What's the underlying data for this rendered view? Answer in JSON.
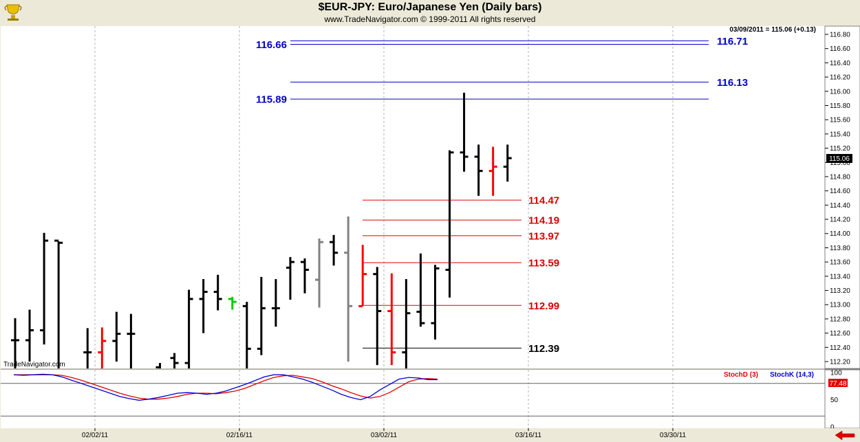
{
  "header": {
    "title": "$EUR-JPY:  Euro/Japanese Yen  (Daily bars)",
    "copyright": "www.TradeNavigator.com © 1999-2011 All rights reserved"
  },
  "watermark": "TradeNavigator.com",
  "status_readout": "03/09/2011 = 115.06 (+0.13)",
  "last_price": "115.06",
  "indicator": {
    "stochd_label": "StochD (3)",
    "stochk_label": "StochK (14,3)",
    "readout": "77.48",
    "stochd_color": "#e00000",
    "stochk_color": "#0000d0",
    "axis_ticks": [
      "100",
      "50",
      "0"
    ]
  },
  "colors": {
    "bar_default": "#000000",
    "bar_red": "#ff0000",
    "bar_gray": "#808080",
    "bar_green": "#00cc00",
    "blue_level": "#0000cc",
    "red_level": "#dd0000"
  },
  "chart_data": {
    "type": "ohlc",
    "y_ticks": [
      "116.80",
      "116.60",
      "116.40",
      "116.20",
      "116.00",
      "115.80",
      "115.60",
      "115.40",
      "115.20",
      "115.00",
      "114.80",
      "114.60",
      "114.40",
      "114.20",
      "114.00",
      "113.80",
      "113.60",
      "113.40",
      "113.20",
      "113.00",
      "112.80",
      "112.60",
      "112.40",
      "112.20"
    ],
    "ylim": [
      112.08,
      116.93
    ],
    "x_labels": [
      "02/02/11",
      "02/16/11",
      "03/02/11",
      "03/16/11",
      "03/30/11"
    ],
    "bars": [
      {
        "date": "01/20/11",
        "open": 112.5,
        "high": 112.81,
        "low": 112.08,
        "close": 112.5,
        "color": "default"
      },
      {
        "date": "01/21/11",
        "open": 112.5,
        "high": 112.93,
        "low": 112.2,
        "close": 112.64,
        "color": "default"
      },
      {
        "date": "01/24/11",
        "open": 112.64,
        "high": 114.01,
        "low": 112.44,
        "close": 113.9,
        "color": "default"
      },
      {
        "date": "01/25/11",
        "open": 113.9,
        "high": 113.89,
        "low": 112.08,
        "close": 113.87,
        "color": "default"
      },
      {
        "date": "01/26/11",
        "open": null,
        "high": null,
        "low": null,
        "close": null,
        "color": "default"
      },
      {
        "date": "01/27/11",
        "open": 112.33,
        "high": 112.67,
        "low": 112.08,
        "close": 112.33,
        "color": "default"
      },
      {
        "date": "01/28/11",
        "open": 112.33,
        "high": 112.68,
        "low": 112.08,
        "close": 112.49,
        "color": "red"
      },
      {
        "date": "01/31/11",
        "open": 112.49,
        "high": 112.9,
        "low": 112.2,
        "close": 112.59,
        "color": "default"
      },
      {
        "date": "02/01/11",
        "open": 112.59,
        "high": 112.87,
        "low": 112.08,
        "close": 112.59,
        "color": "default"
      },
      {
        "date": "02/02/11",
        "open": null,
        "high": null,
        "low": null,
        "close": null,
        "color": "default"
      },
      {
        "date": "02/03/11",
        "open": 112.12,
        "high": 112.18,
        "low": 112.08,
        "close": 112.1,
        "color": "default"
      },
      {
        "date": "02/04/11",
        "open": 112.25,
        "high": 112.32,
        "low": 112.08,
        "close": 112.18,
        "color": "default"
      },
      {
        "date": "02/07/11",
        "open": 112.18,
        "high": 113.21,
        "low": 112.08,
        "close": 113.08,
        "color": "default"
      },
      {
        "date": "02/08/11",
        "open": 113.08,
        "high": 113.36,
        "low": 112.6,
        "close": 113.18,
        "color": "default"
      },
      {
        "date": "02/09/11",
        "open": 113.18,
        "high": 113.42,
        "low": 112.92,
        "close": 113.08,
        "color": "default"
      },
      {
        "date": "02/10/11",
        "open": 113.08,
        "high": 113.11,
        "low": 112.93,
        "close": 113.04,
        "color": "green"
      },
      {
        "date": "02/11/11",
        "open": 112.98,
        "high": 113.04,
        "low": 112.08,
        "close": 112.38,
        "color": "default"
      },
      {
        "date": "02/14/11",
        "open": 112.38,
        "high": 113.39,
        "low": 112.29,
        "close": 112.95,
        "color": "default"
      },
      {
        "date": "02/15/11",
        "open": 112.95,
        "high": 113.36,
        "low": 112.69,
        "close": 112.95,
        "color": "default"
      },
      {
        "date": "02/16/11",
        "open": 113.52,
        "high": 113.67,
        "low": 113.07,
        "close": 113.6,
        "color": "default"
      },
      {
        "date": "02/17/11",
        "open": 113.6,
        "high": 113.65,
        "low": 113.16,
        "close": 113.49,
        "color": "default"
      },
      {
        "date": "02/18/11",
        "open": 113.35,
        "high": 113.93,
        "low": 112.96,
        "close": 113.88,
        "color": "gray"
      },
      {
        "date": "02/21/11",
        "open": 113.88,
        "high": 113.98,
        "low": 113.55,
        "close": 113.73,
        "color": "default"
      },
      {
        "date": "02/22/11",
        "open": 113.73,
        "high": 114.24,
        "low": 112.2,
        "close": 112.98,
        "color": "gray"
      },
      {
        "date": "02/23/11",
        "open": 112.98,
        "high": 113.84,
        "low": 112.98,
        "close": 113.43,
        "color": "red"
      },
      {
        "date": "02/24/11",
        "open": 113.43,
        "high": 113.53,
        "low": 112.15,
        "close": 112.91,
        "color": "default"
      },
      {
        "date": "02/25/11",
        "open": 112.91,
        "high": 113.44,
        "low": 112.15,
        "close": 112.33,
        "color": "red"
      },
      {
        "date": "02/28/11",
        "open": 112.33,
        "high": 113.36,
        "low": 112.08,
        "close": 112.88,
        "color": "default"
      },
      {
        "date": "03/01/11",
        "open": 112.9,
        "high": 113.72,
        "low": 112.69,
        "close": 112.74,
        "color": "default"
      },
      {
        "date": "03/02/11",
        "open": 112.74,
        "high": 113.56,
        "low": 112.51,
        "close": 113.51,
        "color": "default"
      },
      {
        "date": "03/03/11",
        "open": 113.49,
        "high": 115.17,
        "low": 113.1,
        "close": 115.14,
        "color": "default"
      },
      {
        "date": "03/04/11",
        "open": 115.14,
        "high": 115.98,
        "low": 114.87,
        "close": 115.08,
        "color": "default"
      },
      {
        "date": "03/07/11",
        "open": 115.08,
        "high": 115.25,
        "low": 114.53,
        "close": 114.88,
        "color": "default"
      },
      {
        "date": "03/08/11",
        "open": 114.88,
        "high": 115.22,
        "low": 114.53,
        "close": 114.94,
        "color": "red"
      },
      {
        "date": "03/09/11",
        "open": 114.94,
        "high": 115.25,
        "low": 114.73,
        "close": 115.06,
        "color": "default"
      }
    ],
    "blue_levels": [
      {
        "value": 116.66,
        "label": "116.66",
        "side": "left"
      },
      {
        "value": 116.71,
        "label": "116.71",
        "side": "right"
      },
      {
        "value": 116.13,
        "label": "116.13",
        "side": "right"
      },
      {
        "value": 115.89,
        "label": "115.89",
        "side": "left"
      }
    ],
    "red_levels": [
      {
        "value": 114.47,
        "label": "114.47"
      },
      {
        "value": 114.19,
        "label": "114.19"
      },
      {
        "value": 113.97,
        "label": "113.97"
      },
      {
        "value": 113.59,
        "label": "113.59"
      },
      {
        "value": 112.99,
        "label": "112.99"
      }
    ],
    "black_level": {
      "value": 112.39,
      "label": "112.39"
    },
    "stochastics": {
      "ylim": [
        0,
        100
      ],
      "reference_line": 80,
      "stochk": [
        96,
        95,
        96,
        97,
        96,
        92,
        86,
        80,
        74,
        68,
        62,
        56,
        52,
        49,
        51,
        54,
        58,
        62,
        63,
        62,
        60,
        62,
        66,
        72,
        78,
        85,
        92,
        96,
        96,
        92,
        88,
        82,
        75,
        68,
        60,
        54,
        50,
        56,
        68,
        78,
        88,
        91,
        90,
        87,
        87
      ],
      "stochd": [
        96,
        96,
        96,
        96,
        96,
        95,
        91,
        86,
        80,
        74,
        68,
        62,
        57,
        53,
        51,
        51,
        53,
        56,
        60,
        62,
        62,
        61,
        63,
        66,
        71,
        78,
        85,
        91,
        94,
        95,
        92,
        89,
        83,
        76,
        70,
        63,
        57,
        53,
        56,
        63,
        73,
        83,
        88,
        89,
        88
      ]
    }
  }
}
